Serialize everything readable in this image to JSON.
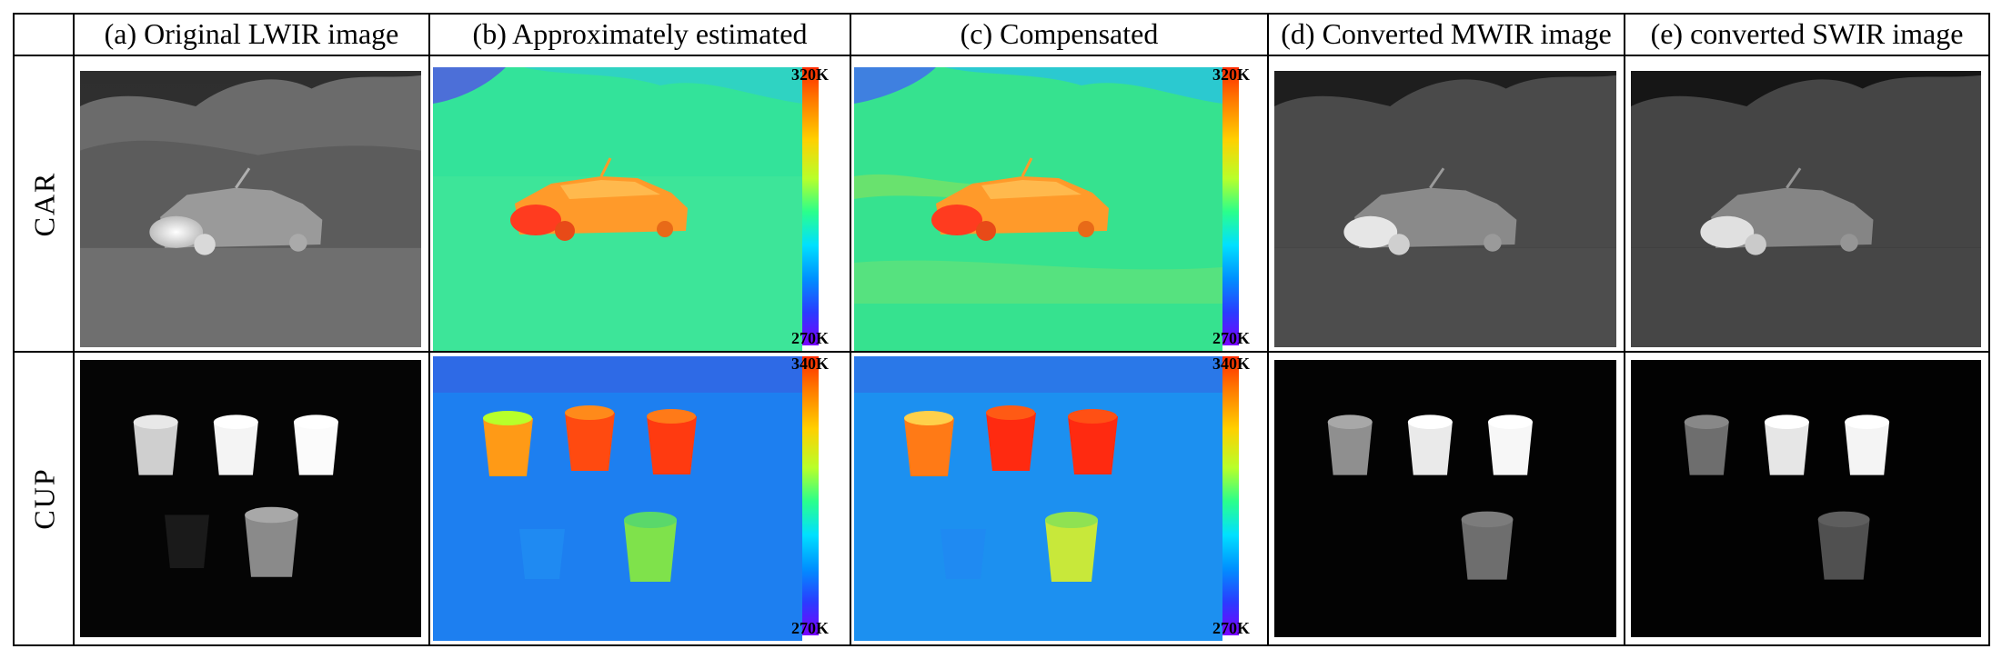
{
  "columns": [
    {
      "label": "(a) Original LWIR image"
    },
    {
      "label": "(b) Approximately estimated"
    },
    {
      "label": "(c) Compensated"
    },
    {
      "label": "(d) Converted MWIR image"
    },
    {
      "label": "(e) converted SWIR image"
    }
  ],
  "rows": [
    {
      "label": "CAR",
      "colorbar_max": "320K",
      "colorbar_min": "270K"
    },
    {
      "label": "CUP",
      "colorbar_max": "340K",
      "colorbar_min": "270K"
    }
  ]
}
